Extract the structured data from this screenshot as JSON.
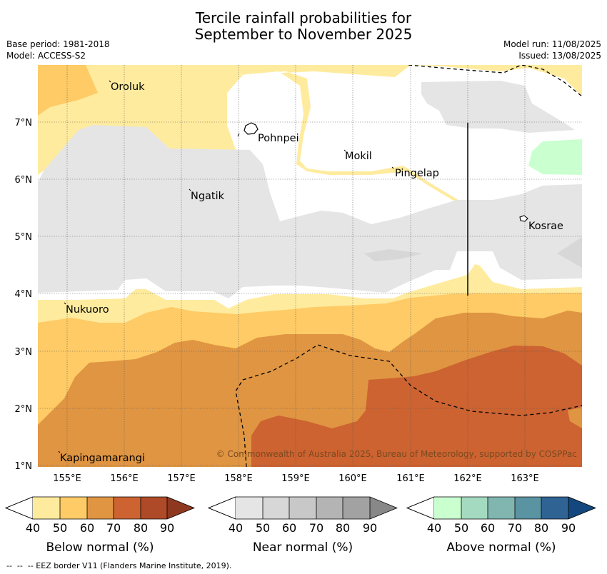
{
  "title_line1": "Tercile rainfall probabilities for",
  "title_line2": "September to November 2025",
  "base_period": "Base period: 1981-2018",
  "model": "Model: ACCESS-S2",
  "model_run": "Model run: 11/08/2025",
  "issued": "Issued: 13/08/2025",
  "copyright": "© Commonwealth of Australia 2025, Bureau of Meteorology, supported by COSPPac",
  "eez_legend": "--  --  -- EEZ border V11 (Flanders Marine Institute, 2019).",
  "map": {
    "lon_ticks": [
      "155°E",
      "156°E",
      "157°E",
      "158°E",
      "159°E",
      "160°E",
      "161°E",
      "162°E",
      "163°E"
    ],
    "lat_ticks": [
      "7°N",
      "6°N",
      "5°N",
      "4°N",
      "3°N",
      "2°N",
      "1°N"
    ],
    "places": [
      {
        "name": "Oroluk"
      },
      {
        "name": "Pohnpei"
      },
      {
        "name": "Mokil"
      },
      {
        "name": "Pingelap"
      },
      {
        "name": "Ngatik"
      },
      {
        "name": "Kosrae"
      },
      {
        "name": "Nukuoro"
      },
      {
        "name": "Kapingamarangi"
      }
    ]
  },
  "colorbars": [
    {
      "title": "Below normal (%)",
      "ticks": [
        "40",
        "50",
        "60",
        "70",
        "80",
        "90"
      ],
      "colors": [
        "#ffeb9e",
        "#fecb66",
        "#e09542",
        "#cc6331",
        "#ae4a27",
        "#8f3820"
      ]
    },
    {
      "title": "Near normal (%)",
      "ticks": [
        "40",
        "50",
        "60",
        "70",
        "80",
        "90"
      ],
      "colors": [
        "#e5e5e5",
        "#d7d7d7",
        "#c8c8c8",
        "#b4b4b4",
        "#a2a2a2",
        "#888888"
      ]
    },
    {
      "title": "Above normal (%)",
      "ticks": [
        "40",
        "50",
        "60",
        "70",
        "80",
        "90"
      ],
      "colors": [
        "#caffcf",
        "#a4dabf",
        "#80b5b0",
        "#5a93a2",
        "#2f6394",
        "#13477e"
      ]
    }
  ]
}
